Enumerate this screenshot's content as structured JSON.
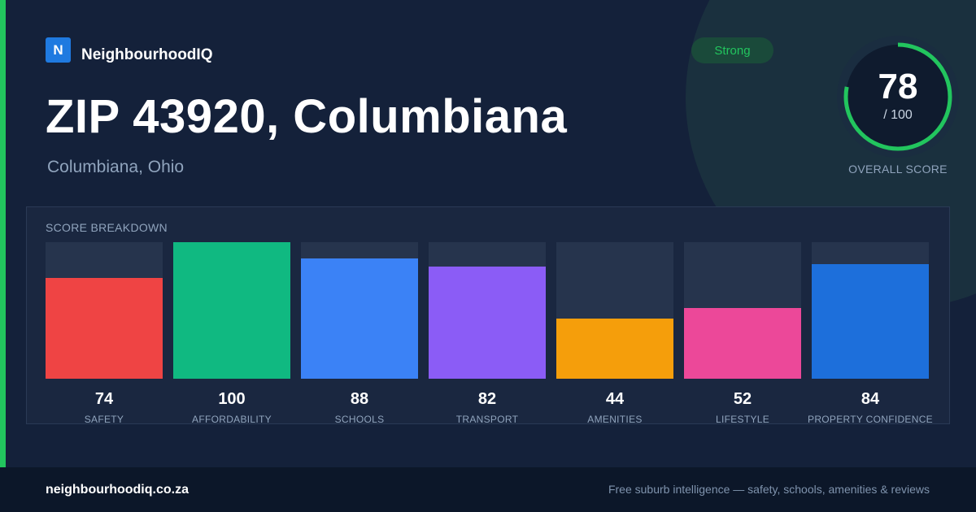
{
  "brand": {
    "logo_letter": "N",
    "name": "NeighbourhoodIQ"
  },
  "heading": {
    "title": "ZIP 43920, Columbiana",
    "subtitle": "Columbiana, Ohio"
  },
  "badge": {
    "label": "Strong",
    "color": "#22c55e"
  },
  "overall": {
    "score": "78",
    "max_label": "/ 100",
    "fraction": 0.78,
    "label": "OVERALL SCORE",
    "ring_color": "#22c55e"
  },
  "breakdown": {
    "title": "SCORE BREAKDOWN",
    "items": [
      {
        "label": "SAFETY",
        "value": "74",
        "color": "#ef4444"
      },
      {
        "label": "AFFORDABILITY",
        "value": "100",
        "color": "#10b981"
      },
      {
        "label": "SCHOOLS",
        "value": "88",
        "color": "#3b82f6"
      },
      {
        "label": "TRANSPORT",
        "value": "82",
        "color": "#8b5cf6"
      },
      {
        "label": "AMENITIES",
        "value": "44",
        "color": "#f59e0b"
      },
      {
        "label": "LIFESTYLE",
        "value": "52",
        "color": "#ec4899"
      },
      {
        "label": "PROPERTY CONFIDENCE",
        "value": "84",
        "color": "#1d6fdb"
      }
    ]
  },
  "chart_data": {
    "type": "bar",
    "categories": [
      "SAFETY",
      "AFFORDABILITY",
      "SCHOOLS",
      "TRANSPORT",
      "AMENITIES",
      "LIFESTYLE",
      "PROPERTY CONFIDENCE"
    ],
    "values": [
      74,
      100,
      88,
      82,
      44,
      52,
      84
    ],
    "title": "SCORE BREAKDOWN",
    "ylim": [
      0,
      100
    ]
  },
  "footer": {
    "url": "neighbourhoodiq.co.za",
    "tagline": "Free suburb intelligence — safety, schools, amenities & reviews"
  }
}
